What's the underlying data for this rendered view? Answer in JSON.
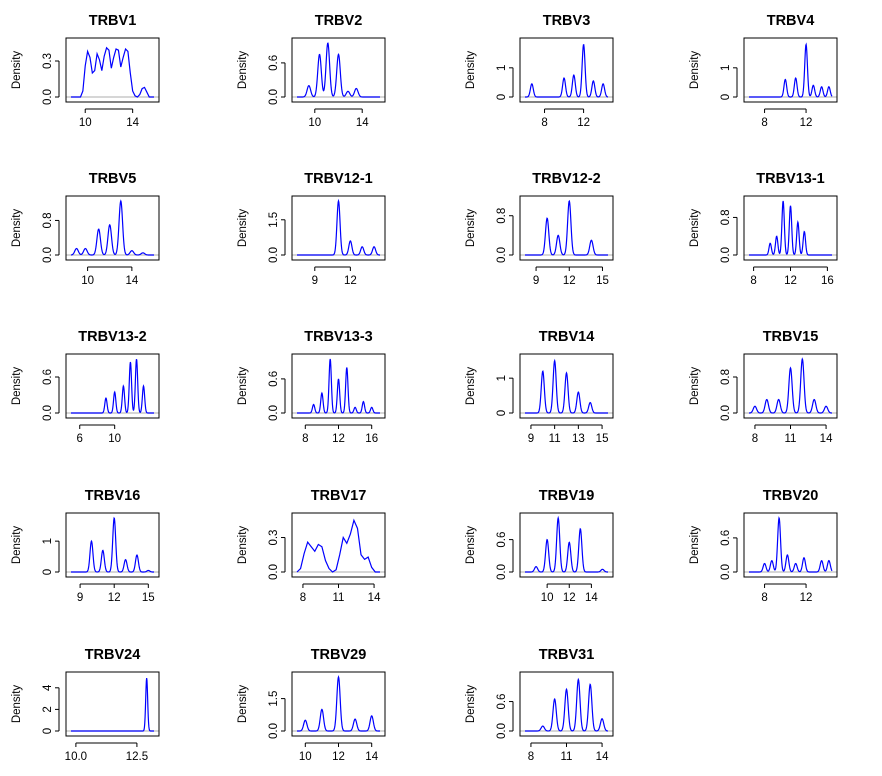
{
  "ylabel": "Density",
  "colors": {
    "curve": "#0000ff",
    "baseline": "#bdbdbd",
    "frame": "#000000"
  },
  "chart_data": [
    {
      "type": "line",
      "title": "TRBV1",
      "xlim": [
        8.8,
        15.8
      ],
      "ylim": [
        0,
        0.45
      ],
      "xticks": [
        10,
        14
      ],
      "yticks": [
        0.0,
        0.3
      ],
      "x": [
        8.8,
        9.6,
        9.8,
        10.0,
        10.2,
        10.4,
        10.6,
        10.8,
        11.0,
        11.2,
        11.4,
        11.6,
        11.8,
        12.0,
        12.2,
        12.4,
        12.6,
        12.8,
        13.0,
        13.2,
        13.4,
        13.6,
        13.8,
        14.0,
        14.2,
        14.4,
        14.6,
        14.8,
        15.0,
        15.2,
        15.4,
        15.8
      ],
      "y": [
        0,
        0,
        0.05,
        0.26,
        0.38,
        0.33,
        0.2,
        0.22,
        0.36,
        0.31,
        0.22,
        0.34,
        0.41,
        0.39,
        0.24,
        0.33,
        0.4,
        0.39,
        0.25,
        0.33,
        0.4,
        0.38,
        0.2,
        0.05,
        0.01,
        0.0,
        0.02,
        0.07,
        0.08,
        0.04,
        0.0,
        0
      ]
    },
    {
      "type": "line",
      "title": "TRBV2",
      "xlim": [
        8.5,
        15.5
      ],
      "ylim": [
        0,
        0.95
      ],
      "xticks": [
        10,
        14
      ],
      "yticks": [
        0.0,
        0.6
      ],
      "peaks": [
        [
          9.5,
          0.2
        ],
        [
          10.4,
          0.75
        ],
        [
          11.1,
          0.95
        ],
        [
          12,
          0.75
        ],
        [
          12.8,
          0.1
        ],
        [
          13.5,
          0.15
        ]
      ],
      "width": 0.15
    },
    {
      "type": "line",
      "title": "TRBV3",
      "xlim": [
        6,
        14.5
      ],
      "ylim": [
        0,
        1.85
      ],
      "xticks": [
        8,
        12
      ],
      "yticks": [
        0.0,
        1.0
      ],
      "peaks": [
        [
          6.7,
          0.45
        ],
        [
          10,
          0.65
        ],
        [
          11,
          0.75
        ],
        [
          12,
          1.8
        ],
        [
          13,
          0.55
        ],
        [
          14,
          0.45
        ]
      ],
      "width": 0.15
    },
    {
      "type": "line",
      "title": "TRBV4",
      "xlim": [
        6.5,
        14.5
      ],
      "ylim": [
        0,
        1.85
      ],
      "xticks": [
        8,
        12
      ],
      "yticks": [
        0.0,
        1.0
      ],
      "peaks": [
        [
          10,
          0.6
        ],
        [
          11,
          0.65
        ],
        [
          12,
          1.8
        ],
        [
          12.7,
          0.4
        ],
        [
          13.5,
          0.35
        ],
        [
          14.2,
          0.35
        ]
      ],
      "width": 0.13
    },
    {
      "type": "line",
      "title": "TRBV5",
      "xlim": [
        8.5,
        16
      ],
      "ylim": [
        0,
        1.25
      ],
      "xticks": [
        10,
        14
      ],
      "yticks": [
        0.0,
        0.8
      ],
      "peaks": [
        [
          9,
          0.15
        ],
        [
          9.8,
          0.15
        ],
        [
          11,
          0.6
        ],
        [
          12,
          0.7
        ],
        [
          13,
          1.25
        ],
        [
          14,
          0.1
        ],
        [
          15,
          0.05
        ]
      ],
      "width": 0.16
    },
    {
      "type": "line",
      "title": "TRBV12-1",
      "xlim": [
        7.5,
        14.5
      ],
      "ylim": [
        0,
        2.3
      ],
      "xticks": [
        9,
        12
      ],
      "yticks": [
        0.0,
        1.5
      ],
      "peaks": [
        [
          11,
          2.3
        ],
        [
          12,
          0.6
        ],
        [
          13,
          0.35
        ],
        [
          14,
          0.35
        ]
      ],
      "width": 0.13
    },
    {
      "type": "line",
      "title": "TRBV12-2",
      "xlim": [
        8,
        15.5
      ],
      "ylim": [
        0,
        1.1
      ],
      "xticks": [
        9,
        12,
        15
      ],
      "yticks": [
        0.0,
        0.8
      ],
      "peaks": [
        [
          10,
          0.75
        ],
        [
          11,
          0.4
        ],
        [
          12,
          1.1
        ],
        [
          14,
          0.3
        ]
      ],
      "width": 0.15
    },
    {
      "type": "line",
      "title": "TRBV13-1",
      "xlim": [
        7.5,
        16.5
      ],
      "ylim": [
        0,
        1.15
      ],
      "xticks": [
        8,
        12,
        16
      ],
      "yticks": [
        0.0,
        0.8
      ],
      "peaks": [
        [
          9.8,
          0.25
        ],
        [
          10.5,
          0.4
        ],
        [
          11.2,
          1.15
        ],
        [
          12,
          1.05
        ],
        [
          12.8,
          0.7
        ],
        [
          13.5,
          0.5
        ]
      ],
      "width": 0.13
    },
    {
      "type": "line",
      "title": "TRBV13-2",
      "xlim": [
        5,
        14.5
      ],
      "ylim": [
        0,
        0.9
      ],
      "xticks": [
        6,
        10
      ],
      "yticks": [
        0.0,
        0.6
      ],
      "peaks": [
        [
          9,
          0.25
        ],
        [
          10,
          0.35
        ],
        [
          11,
          0.45
        ],
        [
          11.8,
          0.85
        ],
        [
          12.5,
          0.9
        ],
        [
          13.3,
          0.45
        ]
      ],
      "width": 0.13
    },
    {
      "type": "line",
      "title": "TRBV13-3",
      "xlim": [
        7,
        17
      ],
      "ylim": [
        0,
        0.95
      ],
      "xticks": [
        8,
        12,
        16
      ],
      "yticks": [
        0.0,
        0.6
      ],
      "peaks": [
        [
          9,
          0.15
        ],
        [
          10,
          0.35
        ],
        [
          11,
          0.95
        ],
        [
          12,
          0.6
        ],
        [
          13,
          0.8
        ],
        [
          14,
          0.1
        ],
        [
          15,
          0.2
        ],
        [
          16,
          0.1
        ]
      ],
      "width": 0.14
    },
    {
      "type": "line",
      "title": "TRBV14",
      "xlim": [
        8.5,
        15.5
      ],
      "ylim": [
        0,
        1.55
      ],
      "xticks": [
        9,
        11,
        13,
        15
      ],
      "yticks": [
        0.0,
        1.0
      ],
      "peaks": [
        [
          10,
          1.2
        ],
        [
          11,
          1.5
        ],
        [
          12,
          1.15
        ],
        [
          13,
          0.6
        ],
        [
          14,
          0.3
        ]
      ],
      "width": 0.13
    },
    {
      "type": "line",
      "title": "TRBV15",
      "xlim": [
        7.5,
        14.5
      ],
      "ylim": [
        0,
        1.2
      ],
      "xticks": [
        8,
        11,
        14
      ],
      "yticks": [
        0.0,
        0.8
      ],
      "peaks": [
        [
          8,
          0.15
        ],
        [
          9,
          0.3
        ],
        [
          10,
          0.3
        ],
        [
          11,
          1.0
        ],
        [
          12,
          1.2
        ],
        [
          13,
          0.3
        ],
        [
          14,
          0.15
        ]
      ],
      "width": 0.14
    },
    {
      "type": "line",
      "title": "TRBV16",
      "xlim": [
        8.2,
        15.5
      ],
      "ylim": [
        0,
        1.75
      ],
      "xticks": [
        9,
        12,
        15
      ],
      "yticks": [
        0.0,
        1.0
      ],
      "peaks": [
        [
          10,
          1.0
        ],
        [
          11,
          0.7
        ],
        [
          12,
          1.75
        ],
        [
          13,
          0.4
        ],
        [
          14,
          0.55
        ],
        [
          15,
          0.05
        ]
      ],
      "width": 0.13
    },
    {
      "type": "line",
      "title": "TRBV17",
      "xlim": [
        7.5,
        14.5
      ],
      "ylim": [
        0,
        0.47
      ],
      "xticks": [
        8,
        11,
        14
      ],
      "yticks": [
        0.0,
        0.3
      ],
      "x": [
        7.5,
        7.8,
        8.1,
        8.4,
        8.7,
        9.0,
        9.3,
        9.6,
        9.9,
        10.2,
        10.5,
        10.8,
        11.1,
        11.4,
        11.7,
        12.0,
        12.3,
        12.6,
        12.9,
        13.2,
        13.5,
        13.8,
        14.1,
        14.5
      ],
      "y": [
        0.0,
        0.03,
        0.16,
        0.26,
        0.22,
        0.18,
        0.24,
        0.22,
        0.1,
        0.03,
        0.0,
        0.02,
        0.15,
        0.3,
        0.25,
        0.33,
        0.45,
        0.38,
        0.15,
        0.11,
        0.13,
        0.04,
        0.0,
        0.0
      ]
    },
    {
      "type": "line",
      "title": "TRBV19",
      "xlim": [
        8,
        15.5
      ],
      "ylim": [
        0,
        1.0
      ],
      "xticks": [
        10,
        12,
        14
      ],
      "yticks": [
        0.0,
        0.6
      ],
      "peaks": [
        [
          9,
          0.1
        ],
        [
          10,
          0.6
        ],
        [
          11,
          1.0
        ],
        [
          12,
          0.55
        ],
        [
          13,
          0.8
        ],
        [
          15,
          0.05
        ]
      ],
      "width": 0.14
    },
    {
      "type": "line",
      "title": "TRBV20",
      "xlim": [
        6.5,
        14.5
      ],
      "ylim": [
        0,
        0.95
      ],
      "xticks": [
        8,
        12
      ],
      "yticks": [
        0.0,
        0.6
      ],
      "peaks": [
        [
          8,
          0.15
        ],
        [
          8.7,
          0.2
        ],
        [
          9.4,
          0.95
        ],
        [
          10.2,
          0.3
        ],
        [
          11,
          0.15
        ],
        [
          11.8,
          0.25
        ],
        [
          13.5,
          0.2
        ],
        [
          14.2,
          0.2
        ]
      ],
      "width": 0.14
    },
    {
      "type": "line",
      "title": "TRBV24",
      "xlim": [
        9.8,
        13.2
      ],
      "ylim": [
        0,
        5.0
      ],
      "xticks": [
        10.0,
        12.5
      ],
      "yticks": [
        0,
        2,
        4
      ],
      "peaks": [
        [
          12.9,
          4.9
        ]
      ],
      "width": 0.04
    },
    {
      "type": "line",
      "title": "TRBV29",
      "xlim": [
        9.5,
        14.5
      ],
      "ylim": [
        0,
        2.5
      ],
      "xticks": [
        10,
        12,
        14
      ],
      "yticks": [
        0.0,
        1.5
      ],
      "peaks": [
        [
          10,
          0.5
        ],
        [
          11,
          1.0
        ],
        [
          12,
          2.5
        ],
        [
          13,
          0.55
        ],
        [
          14,
          0.7
        ]
      ],
      "width": 0.1
    },
    {
      "type": "line",
      "title": "TRBV31",
      "xlim": [
        7.5,
        14.5
      ],
      "ylim": [
        0,
        1.1
      ],
      "xticks": [
        8,
        11,
        14
      ],
      "yticks": [
        0.0,
        0.6
      ],
      "peaks": [
        [
          9,
          0.1
        ],
        [
          10,
          0.65
        ],
        [
          11,
          0.85
        ],
        [
          12,
          1.05
        ],
        [
          13,
          0.95
        ],
        [
          14,
          0.25
        ]
      ],
      "width": 0.14
    }
  ]
}
